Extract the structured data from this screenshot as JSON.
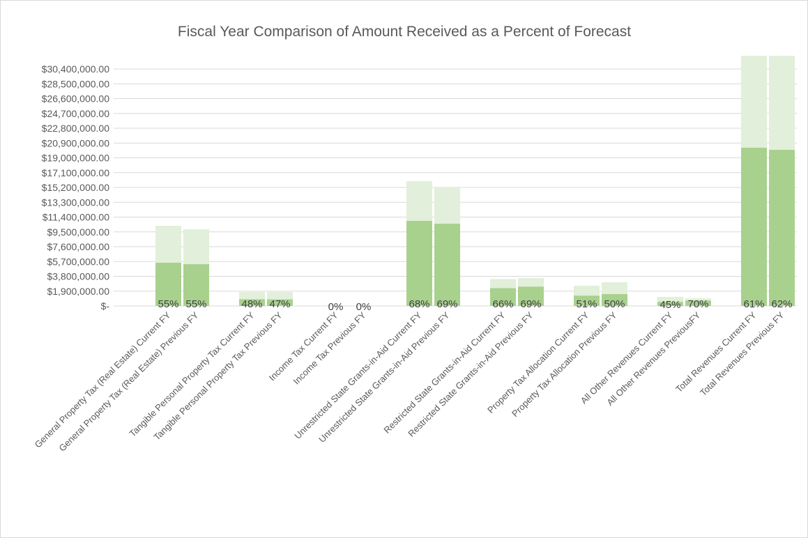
{
  "chart_data": {
    "type": "bar",
    "overlap": true,
    "title": "Fiscal Year Comparison of Amount Received as a Percent of Forecast",
    "categories": [
      "General Property Tax (Real Estate) Current FY",
      "General Property Tax (Real Estate) Previous FY",
      "Tangible Personal Property Tax Current FY",
      "Tangible Personal Property Tax Previous FY",
      "Income Tax Current FY",
      "Income Tax Previous FY",
      "Unrestricted State Grants-in-Aid Current FY",
      "Unrestricted State Grants-in-Aid Previous FY",
      "Restricted State Grants-in-Aid Current FY",
      "Restricted State Grants-in-Aid Previous FY",
      "Property Tax Allocation Current FY",
      "Property Tax Allocation Previous FY",
      "All Other Revenues Current FY",
      "All Other Revenues PreviousFY",
      "Total Revenues Current FY",
      "Total Revenues Previous FY"
    ],
    "series": [
      {
        "color": "#e2efda",
        "values": [
          10280000,
          9840000,
          1790000,
          1790000,
          0,
          0,
          16000000,
          15290000,
          3450000,
          3580000,
          2590000,
          3040000,
          1160000,
          980000,
          33300000,
          32300000
        ]
      },
      {
        "color": "#a9d18e",
        "values": [
          5540000,
          5360000,
          860000,
          840000,
          0,
          0,
          10910000,
          10550000,
          2280000,
          2470000,
          1320000,
          1520000,
          520000,
          690000,
          20300000,
          20030000
        ]
      }
    ],
    "percent_labels": [
      "55%",
      "55%",
      "48%",
      "47%",
      "0%",
      "0%",
      "68%",
      "69%",
      "66%",
      "69%",
      "51%",
      "50%",
      "45%",
      "70%",
      "61%",
      "62%"
    ],
    "ylim": [
      0,
      32100000
    ],
    "yticks": [
      {
        "value": 0,
        "label": "$-"
      },
      {
        "value": 1900000,
        "label": "$1,900,000.00"
      },
      {
        "value": 3800000,
        "label": "$3,800,000.00"
      },
      {
        "value": 5700000,
        "label": "$5,700,000.00"
      },
      {
        "value": 7600000,
        "label": "$7,600,000.00"
      },
      {
        "value": 9500000,
        "label": "$9,500,000.00"
      },
      {
        "value": 11400000,
        "label": "$11,400,000.00"
      },
      {
        "value": 13300000,
        "label": "$13,300,000.00"
      },
      {
        "value": 15200000,
        "label": "$15,200,000.00"
      },
      {
        "value": 17100000,
        "label": "$17,100,000.00"
      },
      {
        "value": 19000000,
        "label": "$19,000,000.00"
      },
      {
        "value": 20900000,
        "label": "$20,900,000.00"
      },
      {
        "value": 22800000,
        "label": "$22,800,000.00"
      },
      {
        "value": 24700000,
        "label": "$24,700,000.00"
      },
      {
        "value": 26600000,
        "label": "$26,600,000.00"
      },
      {
        "value": 28500000,
        "label": "$28,500,000.00"
      },
      {
        "value": 30400000,
        "label": "$30,400,000.00"
      }
    ],
    "grid": true
  }
}
